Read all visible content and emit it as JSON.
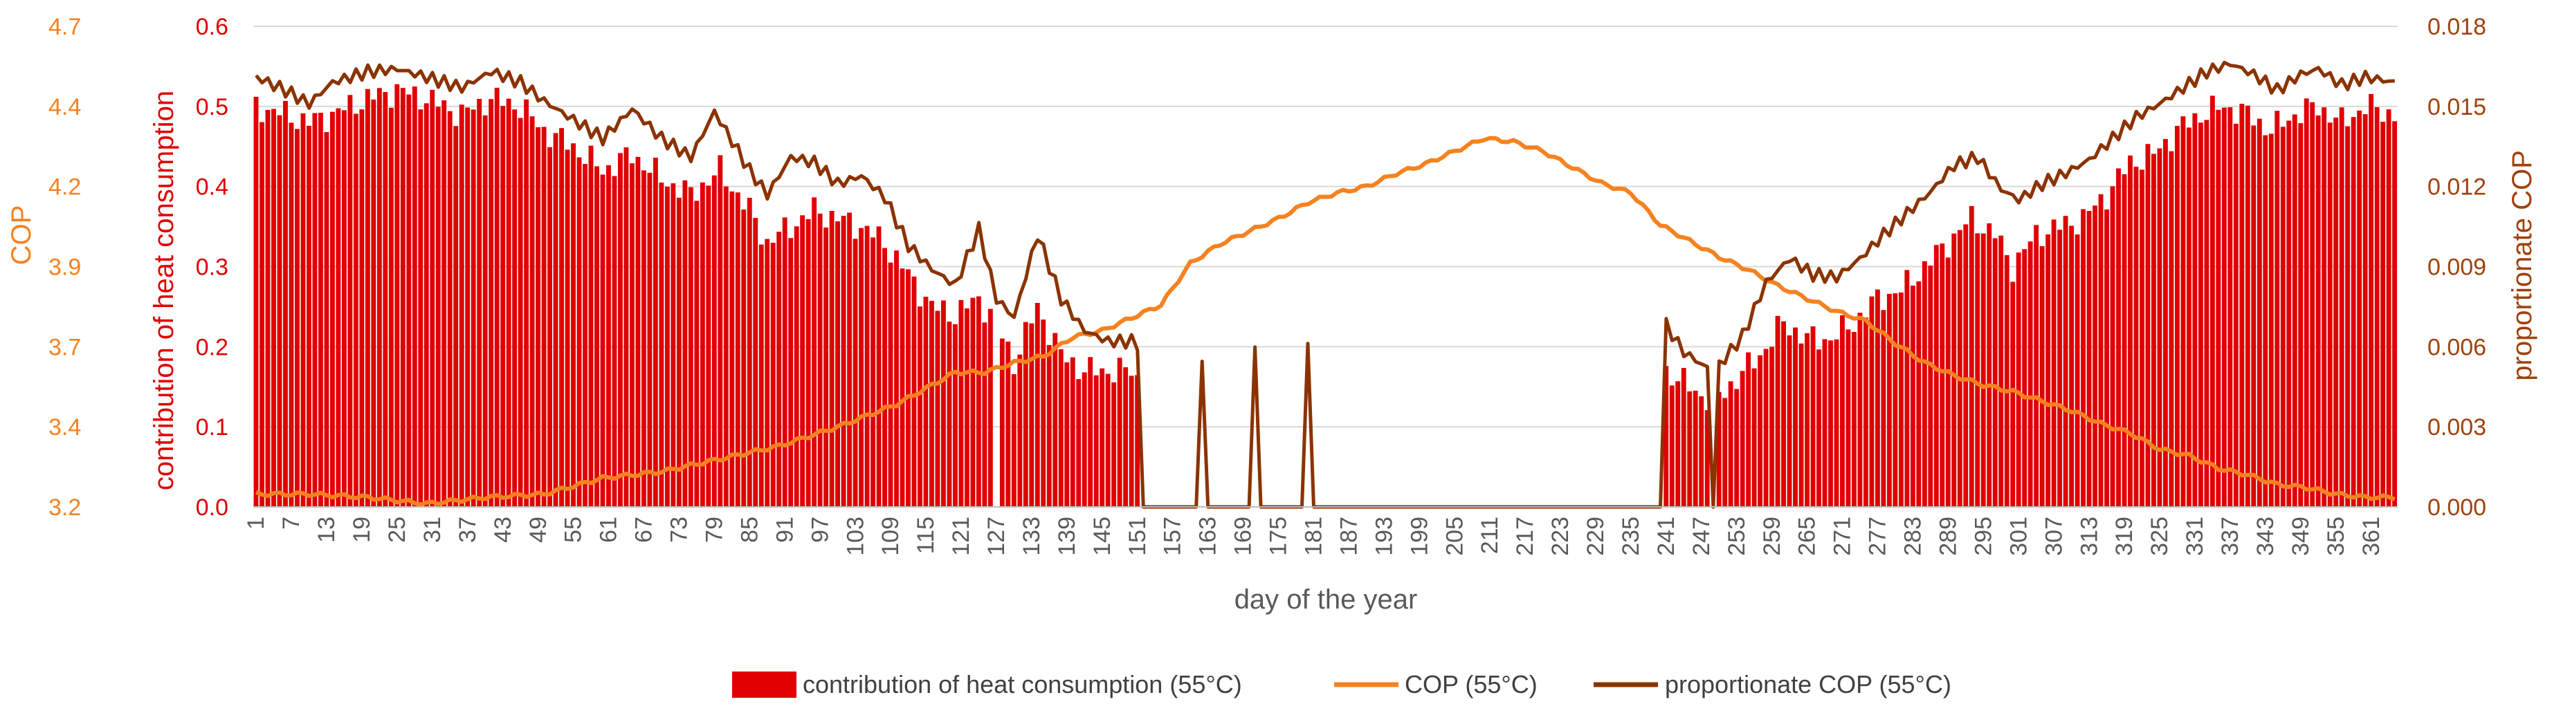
{
  "chart_data": {
    "type": "bar+line",
    "title": "",
    "xlabel": "day of the year",
    "y_left_inner_label": "contribution of heat consumption",
    "y_left_outer_label": "COP",
    "y_right_label": "proportionate COP",
    "y_left_inner_ticks": [
      "0.0",
      "0.1",
      "0.2",
      "0.3",
      "0.4",
      "0.5",
      "0.6"
    ],
    "y_left_outer_ticks": [
      "3.2",
      "3.4",
      "3.7",
      "3.9",
      "4.2",
      "4.4",
      "4.7"
    ],
    "y_right_ticks": [
      "0.000",
      "0.003",
      "0.006",
      "0.009",
      "0.012",
      "0.015",
      "0.018"
    ],
    "x_tick_labels": [
      "1",
      "7",
      "13",
      "19",
      "25",
      "31",
      "37",
      "43",
      "49",
      "55",
      "61",
      "67",
      "73",
      "79",
      "85",
      "91",
      "97",
      "103",
      "109",
      "115",
      "121",
      "127",
      "133",
      "139",
      "145",
      "151",
      "157",
      "163",
      "169",
      "175",
      "181",
      "187",
      "193",
      "199",
      "205",
      "211",
      "217",
      "223",
      "229",
      "235",
      "241",
      "247",
      "253",
      "259",
      "265",
      "271",
      "277",
      "283",
      "289",
      "295",
      "301",
      "307",
      "313",
      "319",
      "325",
      "331",
      "337",
      "343",
      "349",
      "355",
      "361"
    ],
    "ylim_left_inner": [
      0,
      0.6
    ],
    "ylim_left_outer": [
      3.2,
      4.7
    ],
    "ylim_right": [
      0,
      0.018
    ],
    "grid": true,
    "legend_position": "bottom",
    "colors": {
      "bars": "#e00000",
      "cop": "#f58220",
      "pcop": "#8b3300",
      "grid": "#d9d9d9",
      "left_inner_axis": "#e00000",
      "left_outer_axis": "#f58220",
      "right_axis": "#a0410d"
    },
    "series": [
      {
        "name": "contribution of heat consumption (55°C)",
        "kind": "bar",
        "axis": "left_inner",
        "control_points": [
          [
            1,
            0.5
          ],
          [
            6,
            0.49
          ],
          [
            10,
            0.48
          ],
          [
            14,
            0.49
          ],
          [
            20,
            0.51
          ],
          [
            25,
            0.52
          ],
          [
            30,
            0.51
          ],
          [
            36,
            0.49
          ],
          [
            41,
            0.51
          ],
          [
            46,
            0.5
          ],
          [
            50,
            0.47
          ],
          [
            55,
            0.45
          ],
          [
            60,
            0.42
          ],
          [
            65,
            0.44
          ],
          [
            70,
            0.41
          ],
          [
            75,
            0.39
          ],
          [
            80,
            0.42
          ],
          [
            85,
            0.37
          ],
          [
            88,
            0.33
          ],
          [
            92,
            0.35
          ],
          [
            96,
            0.37
          ],
          [
            100,
            0.36
          ],
          [
            104,
            0.35
          ],
          [
            108,
            0.33
          ],
          [
            112,
            0.29
          ],
          [
            116,
            0.25
          ],
          [
            120,
            0.24
          ],
          [
            124,
            0.26
          ],
          [
            127,
            0.23
          ],
          [
            130,
            0.18
          ],
          [
            134,
            0.25
          ],
          [
            138,
            0.19
          ],
          [
            142,
            0.17
          ],
          [
            146,
            0.17
          ],
          [
            150,
            0.17
          ],
          [
            151,
            0.16
          ],
          [
            152,
            0.0
          ],
          [
            240,
            0.0
          ],
          [
            241,
            0.17
          ],
          [
            245,
            0.15
          ],
          [
            249,
            0.13
          ],
          [
            253,
            0.16
          ],
          [
            257,
            0.19
          ],
          [
            261,
            0.23
          ],
          [
            265,
            0.21
          ],
          [
            269,
            0.21
          ],
          [
            273,
            0.23
          ],
          [
            277,
            0.26
          ],
          [
            281,
            0.27
          ],
          [
            285,
            0.3
          ],
          [
            289,
            0.33
          ],
          [
            293,
            0.36
          ],
          [
            297,
            0.34
          ],
          [
            300,
            0.3
          ],
          [
            304,
            0.34
          ],
          [
            308,
            0.35
          ],
          [
            312,
            0.36
          ],
          [
            316,
            0.39
          ],
          [
            320,
            0.43
          ],
          [
            324,
            0.44
          ],
          [
            328,
            0.47
          ],
          [
            332,
            0.49
          ],
          [
            336,
            0.5
          ],
          [
            340,
            0.49
          ],
          [
            344,
            0.47
          ],
          [
            348,
            0.49
          ],
          [
            352,
            0.5
          ],
          [
            356,
            0.48
          ],
          [
            360,
            0.5
          ],
          [
            365,
            0.49
          ]
        ],
        "zero_days": [
          127,
          249
        ]
      },
      {
        "name": "COP (55°C)",
        "kind": "line",
        "axis": "left_outer",
        "control_points": [
          [
            1,
            3.24
          ],
          [
            10,
            3.24
          ],
          [
            20,
            3.23
          ],
          [
            30,
            3.21
          ],
          [
            40,
            3.23
          ],
          [
            50,
            3.24
          ],
          [
            60,
            3.29
          ],
          [
            70,
            3.31
          ],
          [
            80,
            3.35
          ],
          [
            90,
            3.39
          ],
          [
            100,
            3.45
          ],
          [
            110,
            3.52
          ],
          [
            115,
            3.57
          ],
          [
            120,
            3.62
          ],
          [
            125,
            3.62
          ],
          [
            130,
            3.65
          ],
          [
            135,
            3.67
          ],
          [
            140,
            3.73
          ],
          [
            145,
            3.75
          ],
          [
            150,
            3.79
          ],
          [
            155,
            3.83
          ],
          [
            160,
            3.96
          ],
          [
            165,
            4.02
          ],
          [
            170,
            4.06
          ],
          [
            175,
            4.1
          ],
          [
            180,
            4.15
          ],
          [
            185,
            4.18
          ],
          [
            190,
            4.2
          ],
          [
            195,
            4.24
          ],
          [
            200,
            4.27
          ],
          [
            205,
            4.31
          ],
          [
            210,
            4.35
          ],
          [
            215,
            4.34
          ],
          [
            220,
            4.31
          ],
          [
            225,
            4.26
          ],
          [
            230,
            4.21
          ],
          [
            235,
            4.18
          ],
          [
            240,
            4.08
          ],
          [
            245,
            4.03
          ],
          [
            250,
            3.98
          ],
          [
            255,
            3.94
          ],
          [
            260,
            3.89
          ],
          [
            265,
            3.85
          ],
          [
            270,
            3.81
          ],
          [
            275,
            3.78
          ],
          [
            280,
            3.71
          ],
          [
            285,
            3.65
          ],
          [
            290,
            3.61
          ],
          [
            295,
            3.58
          ],
          [
            300,
            3.56
          ],
          [
            305,
            3.53
          ],
          [
            310,
            3.5
          ],
          [
            315,
            3.46
          ],
          [
            320,
            3.43
          ],
          [
            325,
            3.38
          ],
          [
            330,
            3.36
          ],
          [
            335,
            3.32
          ],
          [
            340,
            3.3
          ],
          [
            345,
            3.27
          ],
          [
            350,
            3.26
          ],
          [
            355,
            3.24
          ],
          [
            360,
            3.23
          ],
          [
            365,
            3.23
          ]
        ]
      },
      {
        "name": "proportionate COP (55°C)",
        "kind": "line",
        "axis": "right",
        "control_points": [
          [
            1,
            0.0161
          ],
          [
            6,
            0.0156
          ],
          [
            10,
            0.0151
          ],
          [
            14,
            0.0159
          ],
          [
            20,
            0.0163
          ],
          [
            25,
            0.0164
          ],
          [
            30,
            0.0161
          ],
          [
            36,
            0.0157
          ],
          [
            41,
            0.0163
          ],
          [
            46,
            0.0159
          ],
          [
            50,
            0.0152
          ],
          [
            55,
            0.0145
          ],
          [
            60,
            0.0138
          ],
          [
            65,
            0.0149
          ],
          [
            70,
            0.0138
          ],
          [
            75,
            0.0131
          ],
          [
            79,
            0.0148
          ],
          [
            85,
            0.0126
          ],
          [
            88,
            0.0117
          ],
          [
            92,
            0.0131
          ],
          [
            96,
            0.0129
          ],
          [
            100,
            0.0121
          ],
          [
            104,
            0.0124
          ],
          [
            108,
            0.0116
          ],
          [
            112,
            0.0098
          ],
          [
            116,
            0.0089
          ],
          [
            120,
            0.0083
          ],
          [
            124,
            0.0104
          ],
          [
            127,
            0.0078
          ],
          [
            130,
            0.0071
          ],
          [
            134,
            0.0102
          ],
          [
            138,
            0.0078
          ],
          [
            142,
            0.0066
          ],
          [
            146,
            0.0062
          ],
          [
            150,
            0.0062
          ],
          [
            151,
            0.0061
          ],
          [
            152,
            0.0
          ],
          [
            161,
            0.0
          ],
          [
            162,
            0.0057
          ],
          [
            163,
            0.0
          ],
          [
            170,
            0.0
          ],
          [
            171,
            0.0061
          ],
          [
            172,
            0.0
          ],
          [
            179,
            0.0
          ],
          [
            180,
            0.006
          ],
          [
            181,
            0.0
          ],
          [
            240,
            0.0
          ],
          [
            241,
            0.0068
          ],
          [
            244,
            0.0058
          ],
          [
            248,
            0.0052
          ],
          [
            249,
            0.0
          ],
          [
            250,
            0.0053
          ],
          [
            254,
            0.0064
          ],
          [
            258,
            0.0084
          ],
          [
            262,
            0.0093
          ],
          [
            266,
            0.0087
          ],
          [
            270,
            0.0086
          ],
          [
            274,
            0.0093
          ],
          [
            278,
            0.0102
          ],
          [
            282,
            0.011
          ],
          [
            286,
            0.0118
          ],
          [
            290,
            0.0128
          ],
          [
            294,
            0.0131
          ],
          [
            298,
            0.0119
          ],
          [
            301,
            0.0115
          ],
          [
            305,
            0.0121
          ],
          [
            309,
            0.0125
          ],
          [
            313,
            0.013
          ],
          [
            317,
            0.0138
          ],
          [
            321,
            0.0146
          ],
          [
            325,
            0.0151
          ],
          [
            329,
            0.0157
          ],
          [
            333,
            0.0163
          ],
          [
            337,
            0.0166
          ],
          [
            341,
            0.0162
          ],
          [
            345,
            0.0156
          ],
          [
            349,
            0.0162
          ],
          [
            352,
            0.0164
          ],
          [
            356,
            0.0158
          ],
          [
            360,
            0.0161
          ],
          [
            365,
            0.0159
          ]
        ],
        "spike_days": [
          162,
          171,
          180
        ]
      }
    ]
  }
}
